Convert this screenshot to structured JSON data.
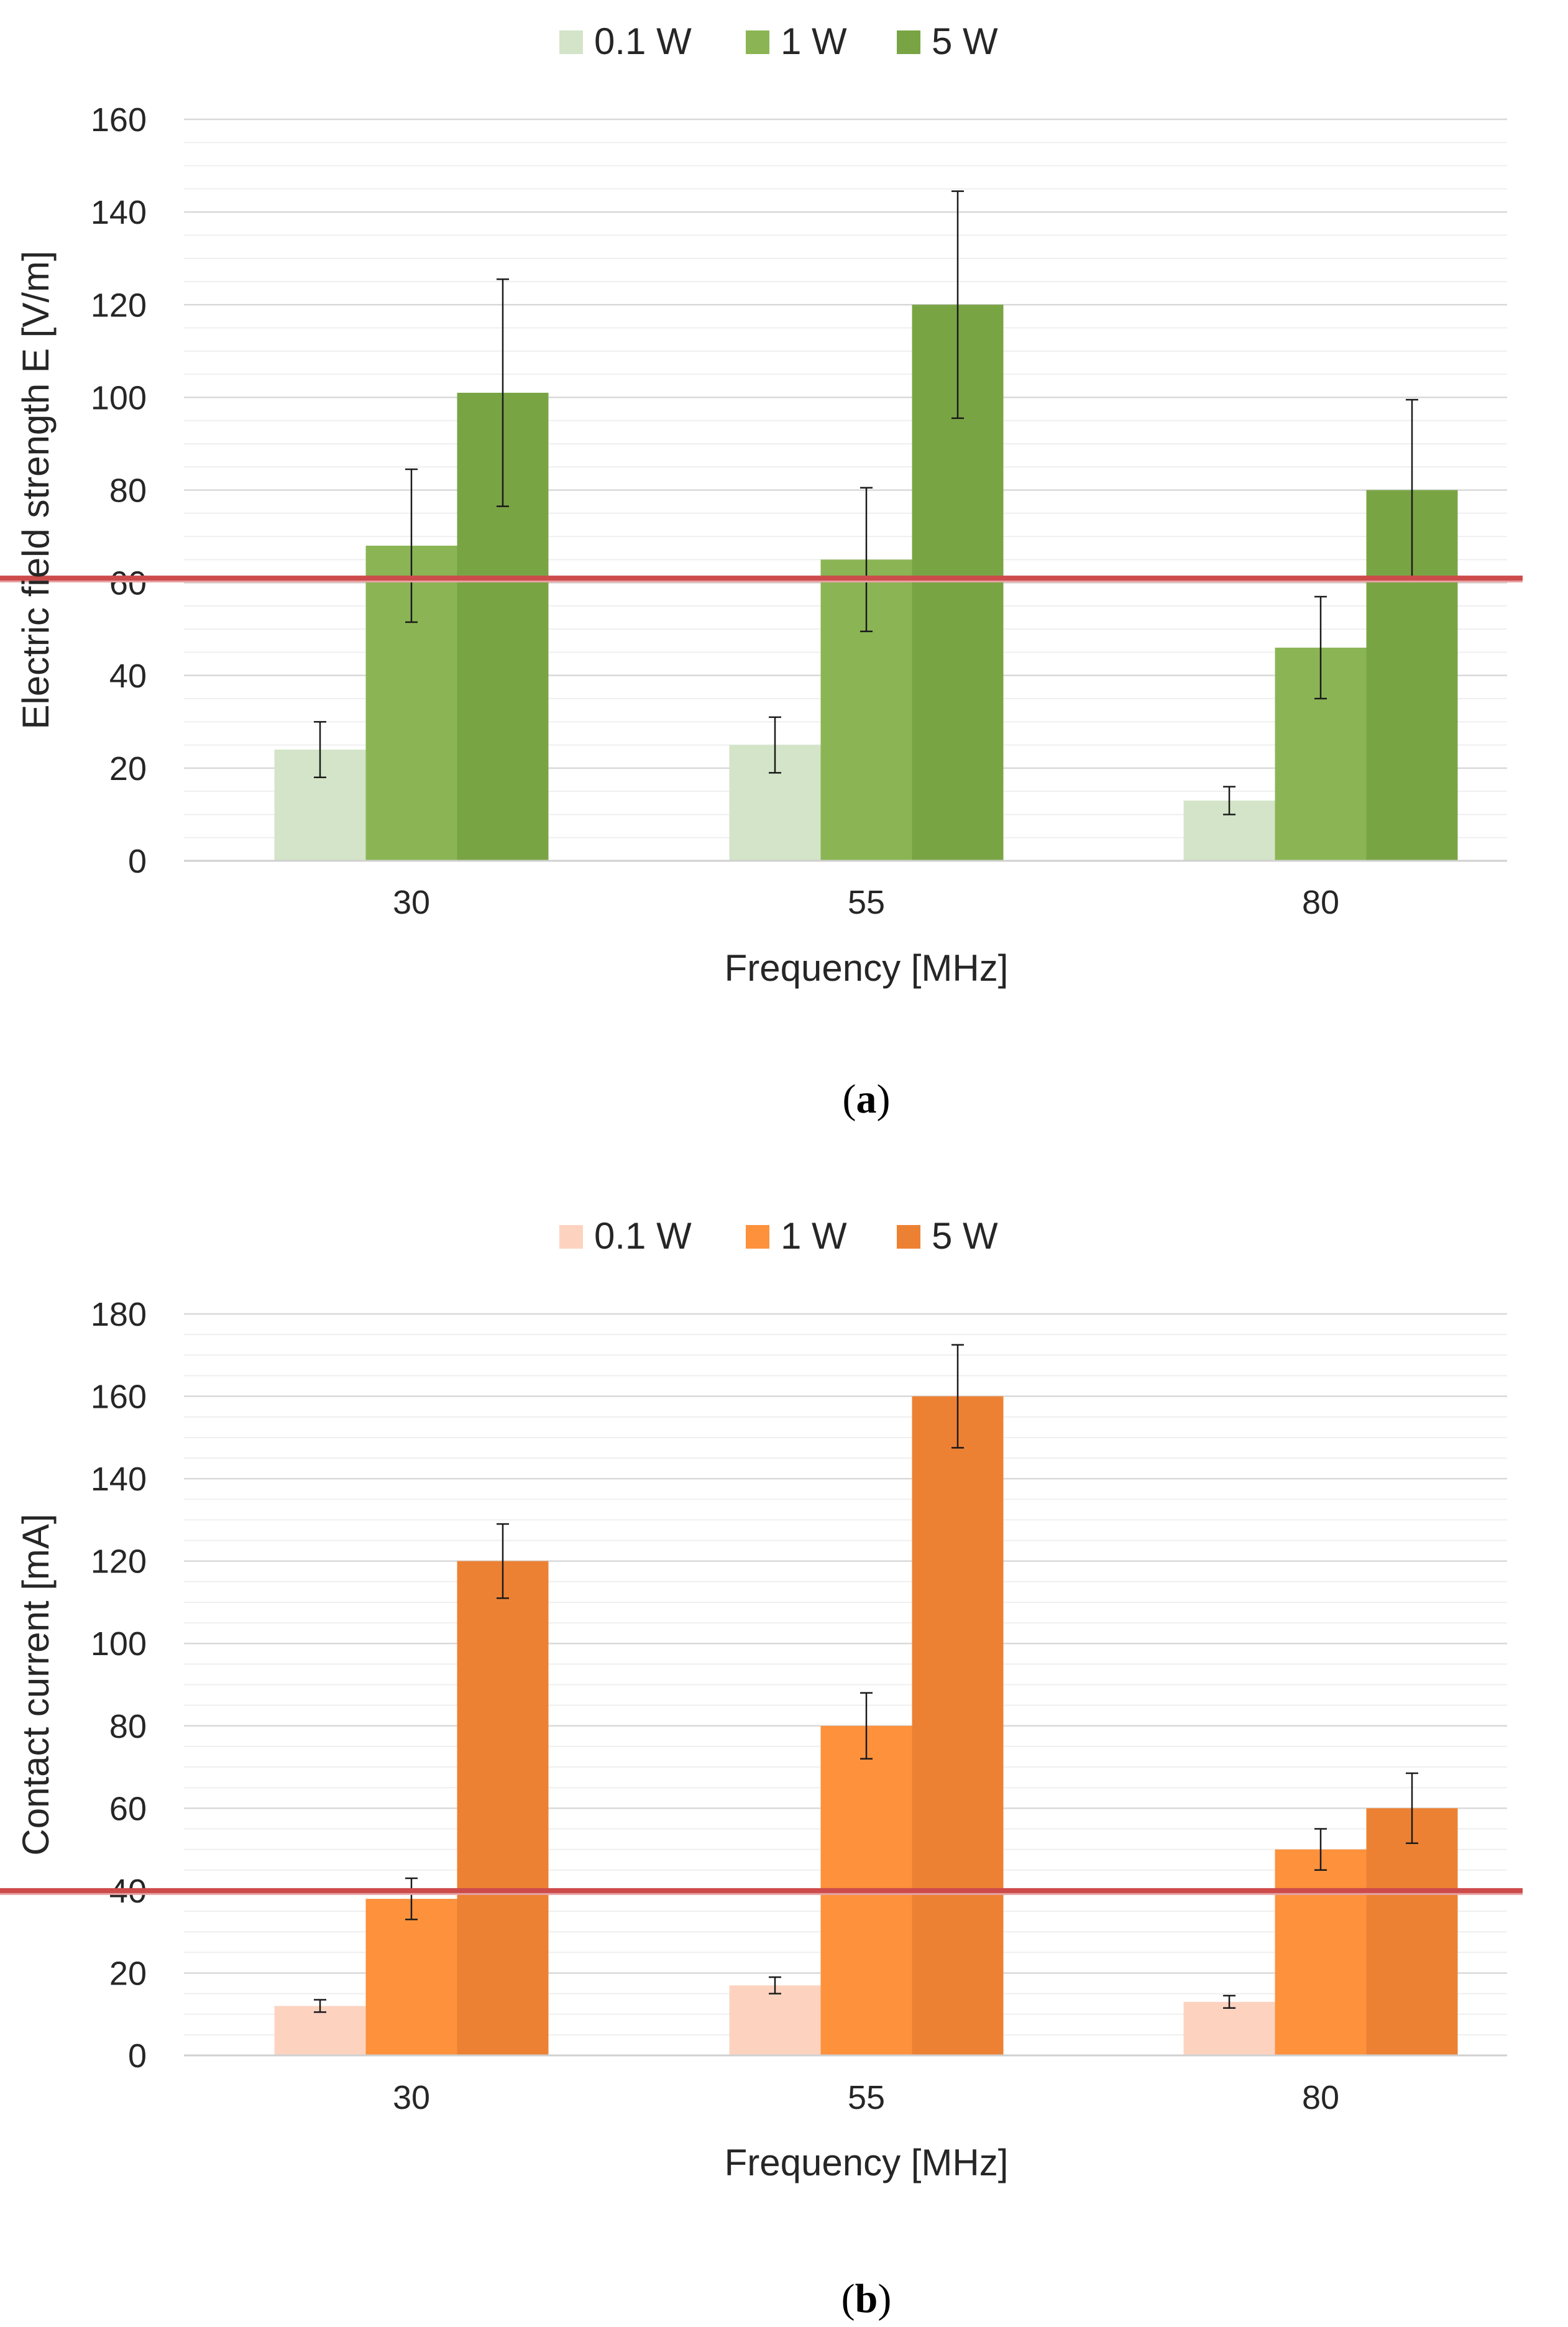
{
  "chart_data": [
    {
      "type": "bar",
      "panel_label": "a",
      "categories": [
        "30",
        "55",
        "80"
      ],
      "series": [
        {
          "name": "0.1 W",
          "values": [
            24,
            25,
            13
          ],
          "error": [
            6,
            6,
            3
          ],
          "color": "#d3e4c8"
        },
        {
          "name": "1 W",
          "values": [
            68,
            65,
            46
          ],
          "error": [
            16.5,
            15.5,
            11
          ],
          "color": "#8bb554"
        },
        {
          "name": "5 W",
          "values": [
            101,
            120,
            80
          ],
          "error": [
            24.5,
            24.5,
            19.5
          ],
          "color": "#79a444"
        }
      ],
      "reference_line": {
        "value": 61,
        "color": "#cd4b4b"
      },
      "xlabel": "Frequency  [MHz]",
      "ylabel": "Electric field strength E [V/m]",
      "ylim": [
        0,
        160
      ],
      "yticks": [
        0,
        20,
        40,
        60,
        80,
        100,
        120,
        140,
        160
      ],
      "grid": true,
      "legend": "top-center"
    },
    {
      "type": "bar",
      "panel_label": "b",
      "categories": [
        "30",
        "55",
        "80"
      ],
      "series": [
        {
          "name": "0.1 W",
          "values": [
            12,
            17,
            13
          ],
          "error": [
            1.5,
            2,
            1.5
          ],
          "color": "#fdd3c0"
        },
        {
          "name": "1 W",
          "values": [
            38,
            80,
            50
          ],
          "error": [
            5,
            8,
            5
          ],
          "color": "#fd913c"
        },
        {
          "name": "5 W",
          "values": [
            120,
            160,
            60
          ],
          "error": [
            9,
            12.5,
            8.5
          ],
          "color": "#ed8133"
        }
      ],
      "reference_line": {
        "value": 40,
        "color": "#cd4b4b"
      },
      "xlabel": "Frequency  [MHz]",
      "ylabel": "Contact current [mA]",
      "ylim": [
        0,
        180
      ],
      "yticks": [
        0,
        20,
        40,
        60,
        80,
        100,
        120,
        140,
        160,
        180
      ],
      "grid": true,
      "legend": "top-center"
    }
  ]
}
